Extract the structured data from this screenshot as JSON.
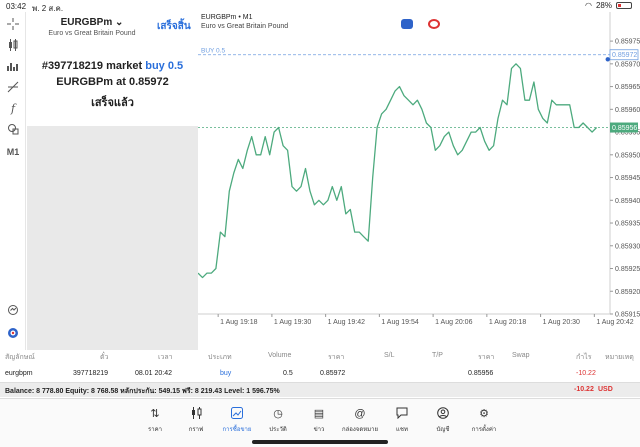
{
  "statusbar": {
    "time": "03:42",
    "date": "พ. 2 ส.ค.",
    "battery": "28%"
  },
  "toolbar": {
    "tools": [
      "crosshair-icon",
      "candles-icon",
      "indicators-icon",
      "objects-icon",
      "function-icon",
      "shapes-icon"
    ],
    "timeframe": "M1"
  },
  "order_panel": {
    "symbol": "EURGBPm",
    "symbol_description": "Euro vs Great Britain Pound",
    "done_label": "เสร็จสิ้น",
    "line1_prefix": "#397718219 market",
    "line1_action": "buy 0.5",
    "line2_prefix": "EURGBPm at",
    "line2_price": "0.85972",
    "line3": "เสร็จแล้ว"
  },
  "chart_header": {
    "symbol": "EURGBPm • M1",
    "description": "Euro vs Great Britain Pound"
  },
  "chart_data": {
    "type": "line",
    "title": "",
    "xlabel": "",
    "ylabel": "",
    "ylim": [
      0.85915,
      0.85977
    ],
    "y_ticks": [
      "0.85975",
      "0.85970",
      "0.85965",
      "0.85960",
      "0.85955",
      "0.85950",
      "0.85945",
      "0.85940",
      "0.85935",
      "0.85930",
      "0.85925",
      "0.85920",
      "0.85915"
    ],
    "y_tick_values": [
      0.85975,
      0.8597,
      0.85965,
      0.8596,
      0.85955,
      0.8595,
      0.85945,
      0.8594,
      0.85935,
      0.8593,
      0.85925,
      0.8592,
      0.85915
    ],
    "x_ticks": [
      "1 Aug 19:18",
      "1 Aug 19:30",
      "1 Aug 19:42",
      "1 Aug 19:54",
      "1 Aug 20:06",
      "1 Aug 20:18",
      "1 Aug 20:30",
      "1 Aug 20:42"
    ],
    "x_tick_positions": [
      0.5,
      12.5,
      24.5,
      36.5,
      48.5,
      60.5,
      72.5,
      84.5
    ],
    "buy_level": {
      "label": "BUY 0.5",
      "value": 0.85972,
      "price_label": "0.85972"
    },
    "bid_level": {
      "value": 0.85956,
      "price_label": "0.85956"
    },
    "entry_marker": {
      "x": 87.5,
      "y": 0.85971
    },
    "series": [
      {
        "color": "#4daa7e",
        "x": [
          -4,
          -3,
          -2,
          -1,
          0,
          1,
          2,
          3,
          4,
          5,
          6,
          7,
          8,
          9,
          10,
          11,
          12,
          13,
          14,
          15,
          16,
          17,
          18,
          19,
          20,
          21,
          22,
          23,
          24,
          25,
          26,
          27,
          28,
          29,
          30,
          31,
          32,
          33,
          34,
          35,
          36,
          37,
          38,
          39,
          40,
          41,
          42,
          43,
          44,
          45,
          46,
          47,
          48,
          49,
          50,
          51,
          52,
          53,
          54,
          55,
          56,
          57,
          58,
          59,
          60,
          61,
          62,
          63,
          64,
          65,
          66,
          67,
          68,
          69,
          70,
          71,
          72,
          73,
          74,
          75,
          76,
          77,
          78,
          79,
          80,
          81,
          82,
          83,
          84,
          85
        ],
        "y": [
          0.85924,
          0.85923,
          0.85924,
          0.85924,
          0.85925,
          0.85933,
          0.85932,
          0.85942,
          0.85946,
          0.85949,
          0.85947,
          0.85951,
          0.85954,
          0.8595,
          0.8595,
          0.85954,
          0.8595,
          0.85955,
          0.85956,
          0.85952,
          0.85951,
          0.85943,
          0.85942,
          0.85943,
          0.85947,
          0.85942,
          0.85939,
          0.8594,
          0.85939,
          0.8594,
          0.85943,
          0.8594,
          0.85943,
          0.85937,
          0.85938,
          0.85933,
          0.85933,
          0.85932,
          0.85931,
          0.85945,
          0.85956,
          0.85959,
          0.8596,
          0.85962,
          0.85964,
          0.85965,
          0.85963,
          0.85962,
          0.85961,
          0.85962,
          0.8596,
          0.85957,
          0.85956,
          0.85951,
          0.85952,
          0.85954,
          0.85955,
          0.85952,
          0.8595,
          0.85951,
          0.85953,
          0.85955,
          0.85955,
          0.85956,
          0.85953,
          0.85951,
          0.85952,
          0.85958,
          0.85962,
          0.85961,
          0.85969,
          0.8597,
          0.85969,
          0.85962,
          0.85962,
          0.85966,
          0.8596,
          0.85958,
          0.85957,
          0.85962,
          0.85961,
          0.85961,
          0.85961,
          0.85961,
          0.85956,
          0.85956,
          0.85957,
          0.85956,
          0.85955,
          0.85956
        ]
      }
    ],
    "grid": true
  },
  "positions": {
    "headers": [
      "สัญลักษณ์",
      "ตั๋ว",
      "เวลา",
      "ประเภท",
      "Volume",
      "ราคา",
      "S/L",
      "T/P",
      "ราคา",
      "Swap",
      "กำไร",
      "หมายเหตุ"
    ],
    "row": {
      "symbol": "eurgbpm",
      "ticket": "397718219",
      "time": "08.01 20:42",
      "type": "buy",
      "volume": "0.5",
      "open_price": "0.85972",
      "current_price": "0.85956",
      "profit": "-10.22"
    }
  },
  "balance_bar": {
    "text": "Balance: 8 778.80 Equity: 8 768.58 หลักประกัน: 549.15 ฟรี: 8 219.43 Level: 1 596.75%",
    "profit": "-10.22",
    "currency": "USD"
  },
  "nav": {
    "items": [
      {
        "label": "ราคา",
        "icon": "quotes-icon",
        "active": false
      },
      {
        "label": "กราฟ",
        "icon": "chart-icon",
        "active": false
      },
      {
        "label": "การซื้อขาย",
        "icon": "trade-icon",
        "active": true
      },
      {
        "label": "ประวัติ",
        "icon": "history-icon",
        "active": false
      },
      {
        "label": "ข่าว",
        "icon": "news-icon",
        "active": false
      },
      {
        "label": "กล่องจดหมาย",
        "icon": "mailbox-icon",
        "active": false
      },
      {
        "label": "แชท",
        "icon": "chat-icon",
        "active": false
      },
      {
        "label": "บัญชี",
        "icon": "account-icon",
        "active": false
      },
      {
        "label": "การตั้งค่า",
        "icon": "settings-icon",
        "active": false
      }
    ]
  },
  "colors": {
    "accent": "#2a6fdb",
    "line": "#4daa7e",
    "loss": "#d33333",
    "buy_line": "#6f9ee0"
  }
}
